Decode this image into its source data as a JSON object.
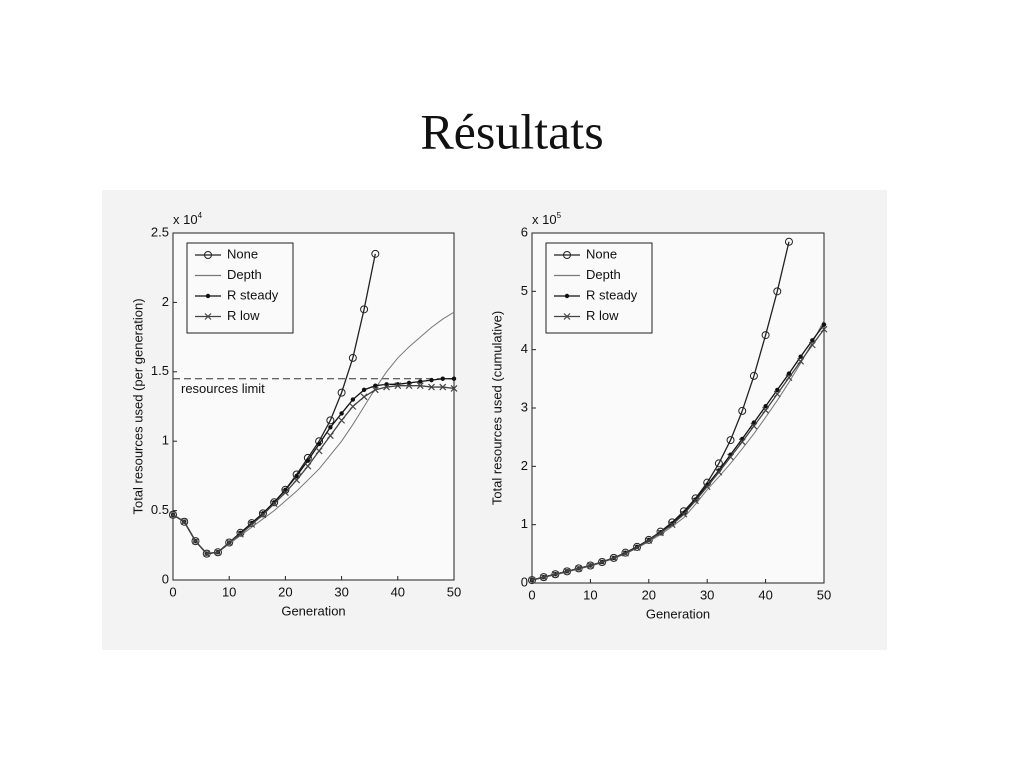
{
  "title": "Résultats",
  "chart_data": [
    {
      "type": "line",
      "xlabel": "Generation",
      "ylabel": "Total resources used (per generation)",
      "y_multiplier": {
        "base": "x 10",
        "exponent": "4"
      },
      "xlim": [
        0,
        50
      ],
      "xticks": [
        0,
        10,
        20,
        30,
        40,
        50
      ],
      "ylim": [
        0,
        2.5
      ],
      "yticks": [
        0,
        0.5,
        1,
        1.5,
        2,
        2.5
      ],
      "legend": "upper left",
      "hline": {
        "label": "resources limit",
        "value": 1.45
      },
      "x": [
        0,
        2,
        4,
        6,
        8,
        10,
        12,
        14,
        16,
        18,
        20,
        22,
        24,
        26,
        28,
        30,
        32,
        34,
        36,
        38,
        40,
        42,
        44,
        46,
        48,
        50
      ],
      "series": [
        {
          "name": "None",
          "color": "#222222",
          "marker": "circle",
          "values": [
            0.47,
            0.42,
            0.28,
            0.19,
            0.2,
            0.27,
            0.34,
            0.41,
            0.48,
            0.56,
            0.65,
            0.76,
            0.88,
            1.0,
            1.15,
            1.35,
            1.6,
            1.95,
            2.35,
            null,
            null,
            null,
            null,
            null,
            null,
            null
          ]
        },
        {
          "name": "Depth",
          "color": "#777777",
          "marker": "none",
          "values": [
            0.47,
            0.42,
            0.28,
            0.19,
            0.2,
            0.26,
            0.32,
            0.38,
            0.44,
            0.5,
            0.57,
            0.64,
            0.72,
            0.8,
            0.9,
            1.0,
            1.12,
            1.25,
            1.38,
            1.5,
            1.6,
            1.68,
            1.75,
            1.82,
            1.88,
            1.93
          ]
        },
        {
          "name": "R steady",
          "color": "#111111",
          "marker": "dot",
          "values": [
            0.47,
            0.42,
            0.28,
            0.19,
            0.2,
            0.27,
            0.34,
            0.41,
            0.48,
            0.56,
            0.65,
            0.75,
            0.86,
            0.98,
            1.1,
            1.2,
            1.3,
            1.37,
            1.4,
            1.41,
            1.41,
            1.42,
            1.43,
            1.44,
            1.45,
            1.45
          ]
        },
        {
          "name": "R low",
          "color": "#444444",
          "marker": "x",
          "values": [
            0.47,
            0.42,
            0.28,
            0.19,
            0.2,
            0.27,
            0.33,
            0.4,
            0.47,
            0.55,
            0.63,
            0.72,
            0.82,
            0.93,
            1.04,
            1.15,
            1.25,
            1.32,
            1.37,
            1.39,
            1.4,
            1.4,
            1.4,
            1.39,
            1.39,
            1.38
          ]
        }
      ]
    },
    {
      "type": "line",
      "xlabel": "Generation",
      "ylabel": "Total resources used (cumulative)",
      "y_multiplier": {
        "base": "x 10",
        "exponent": "5"
      },
      "xlim": [
        0,
        50
      ],
      "xticks": [
        0,
        10,
        20,
        30,
        40,
        50
      ],
      "ylim": [
        0,
        6
      ],
      "yticks": [
        0,
        1,
        2,
        3,
        4,
        5,
        6
      ],
      "legend": "upper left",
      "x": [
        0,
        2,
        4,
        6,
        8,
        10,
        12,
        14,
        16,
        18,
        20,
        22,
        24,
        26,
        28,
        30,
        32,
        34,
        36,
        38,
        40,
        42,
        44,
        46,
        48,
        50
      ],
      "series": [
        {
          "name": "None",
          "color": "#222222",
          "marker": "circle",
          "values": [
            0.05,
            0.1,
            0.15,
            0.2,
            0.25,
            0.3,
            0.36,
            0.43,
            0.52,
            0.62,
            0.74,
            0.88,
            1.04,
            1.23,
            1.45,
            1.72,
            2.05,
            2.45,
            2.95,
            3.55,
            4.25,
            5.0,
            5.85,
            null,
            null,
            null
          ]
        },
        {
          "name": "Depth",
          "color": "#777777",
          "marker": "none",
          "values": [
            0.05,
            0.1,
            0.14,
            0.19,
            0.24,
            0.29,
            0.35,
            0.42,
            0.5,
            0.6,
            0.71,
            0.83,
            0.97,
            1.12,
            1.35,
            1.6,
            1.82,
            2.05,
            2.3,
            2.56,
            2.84,
            3.13,
            3.44,
            3.77,
            4.12,
            4.5
          ]
        },
        {
          "name": "R steady",
          "color": "#111111",
          "marker": "dot",
          "values": [
            0.05,
            0.1,
            0.15,
            0.2,
            0.25,
            0.3,
            0.36,
            0.43,
            0.52,
            0.62,
            0.74,
            0.87,
            1.02,
            1.2,
            1.43,
            1.68,
            1.93,
            2.2,
            2.47,
            2.75,
            3.03,
            3.31,
            3.59,
            3.88,
            4.16,
            4.43
          ]
        },
        {
          "name": "R low",
          "color": "#444444",
          "marker": "x",
          "values": [
            0.05,
            0.1,
            0.15,
            0.2,
            0.25,
            0.3,
            0.36,
            0.43,
            0.51,
            0.61,
            0.73,
            0.86,
            1.0,
            1.18,
            1.41,
            1.65,
            1.9,
            2.16,
            2.42,
            2.69,
            2.96,
            3.24,
            3.52,
            3.8,
            4.08,
            4.35
          ]
        }
      ]
    }
  ]
}
